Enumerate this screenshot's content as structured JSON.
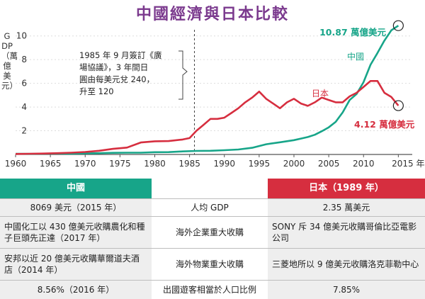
{
  "title": "中國經濟與日本比較",
  "y_axis_label": "GDP（萬億美元）",
  "annotation": {
    "lines": [
      "1985 年 9 月簽訂《廣",
      "場協議》，3 年間日",
      "圓由每美元兌 240，",
      "升至 120"
    ]
  },
  "series_labels": {
    "china": "中國",
    "japan": "日本",
    "china_end": "10.87 萬億美元",
    "japan_end": "4.12 萬億美元"
  },
  "colors": {
    "title": "#7b3a8e",
    "china": "#17a589",
    "japan": "#d62e3f",
    "axis": "#555555",
    "grid": "#dddddd"
  },
  "chart_data": {
    "type": "line",
    "title": "中國經濟與日本比較",
    "xlabel": "",
    "ylabel": "GDP（萬億美元）",
    "xlim": [
      1960,
      2017
    ],
    "ylim": [
      0,
      11
    ],
    "x_ticks": [
      1960,
      1965,
      1970,
      1975,
      1980,
      1985,
      1990,
      1995,
      2000,
      2005,
      2010,
      2015
    ],
    "x_tick_labels": [
      "1960",
      "1965",
      "1970",
      "1975",
      "1980",
      "1985",
      "1990",
      "1995",
      "2000",
      "2005",
      "2010",
      "2015 年"
    ],
    "y_ticks": [
      2,
      4,
      6,
      8,
      10
    ],
    "y_tick_labels": [
      "2",
      "4",
      "6",
      "8",
      "10"
    ],
    "series": [
      {
        "name": "中國",
        "x": [
          1960,
          1962,
          1964,
          1966,
          1968,
          1970,
          1972,
          1974,
          1976,
          1978,
          1980,
          1982,
          1984,
          1986,
          1988,
          1990,
          1992,
          1994,
          1996,
          1998,
          2000,
          2001,
          2002,
          2003,
          2004,
          2005,
          2006,
          2007,
          2008,
          2009,
          2010,
          2011,
          2012,
          2013,
          2014,
          2015
        ],
        "y": [
          0.06,
          0.05,
          0.06,
          0.08,
          0.07,
          0.09,
          0.11,
          0.14,
          0.15,
          0.15,
          0.19,
          0.2,
          0.26,
          0.3,
          0.31,
          0.36,
          0.42,
          0.56,
          0.86,
          1.03,
          1.21,
          1.34,
          1.47,
          1.66,
          1.96,
          2.29,
          2.75,
          3.55,
          4.59,
          5.1,
          6.1,
          7.57,
          8.56,
          9.61,
          10.48,
          10.87
        ]
      },
      {
        "name": "日本",
        "x": [
          1960,
          1962,
          1964,
          1966,
          1968,
          1970,
          1972,
          1974,
          1976,
          1978,
          1980,
          1982,
          1984,
          1985,
          1986,
          1987,
          1988,
          1989,
          1990,
          1991,
          1992,
          1993,
          1994,
          1995,
          1996,
          1997,
          1998,
          1999,
          2000,
          2001,
          2002,
          2003,
          2004,
          2005,
          2006,
          2007,
          2008,
          2009,
          2010,
          2011,
          2012,
          2013,
          2014,
          2015
        ],
        "y": [
          0.04,
          0.06,
          0.08,
          0.11,
          0.15,
          0.21,
          0.31,
          0.47,
          0.58,
          1.01,
          1.11,
          1.13,
          1.26,
          1.38,
          2.0,
          2.5,
          3.0,
          3.0,
          3.1,
          3.5,
          3.9,
          4.4,
          4.8,
          5.3,
          4.7,
          4.3,
          3.9,
          4.4,
          4.7,
          4.3,
          4.1,
          4.4,
          4.8,
          4.6,
          4.4,
          4.4,
          4.9,
          5.2,
          5.7,
          6.2,
          6.2,
          5.2,
          4.85,
          4.12
        ]
      }
    ],
    "legend": "inline labels"
  },
  "table": {
    "header": {
      "left": "中國",
      "mid": "",
      "right": "日本（1989 年）"
    },
    "rows": [
      {
        "left": "8069 美元（2015 年）",
        "mid": "人均 GDP",
        "right": "2.35 萬美元"
      },
      {
        "left": "中國化工以 430 億美元收購農化和種子巨頭先正達（2017 年）",
        "mid": "海外企業重大收購",
        "right": "SONY 斥 34 億美元收購哥倫比亞電影公司"
      },
      {
        "left": "安邦以近 20 億美元收購華爾道夫酒店（2014 年）",
        "mid": "海外物業重大收購",
        "right": "三菱地所以 9 億美元收購洛克菲勒中心"
      },
      {
        "left": "8.56%（2016 年）",
        "mid": "出國遊客相當於人口比例",
        "right": "7.85%"
      }
    ]
  }
}
